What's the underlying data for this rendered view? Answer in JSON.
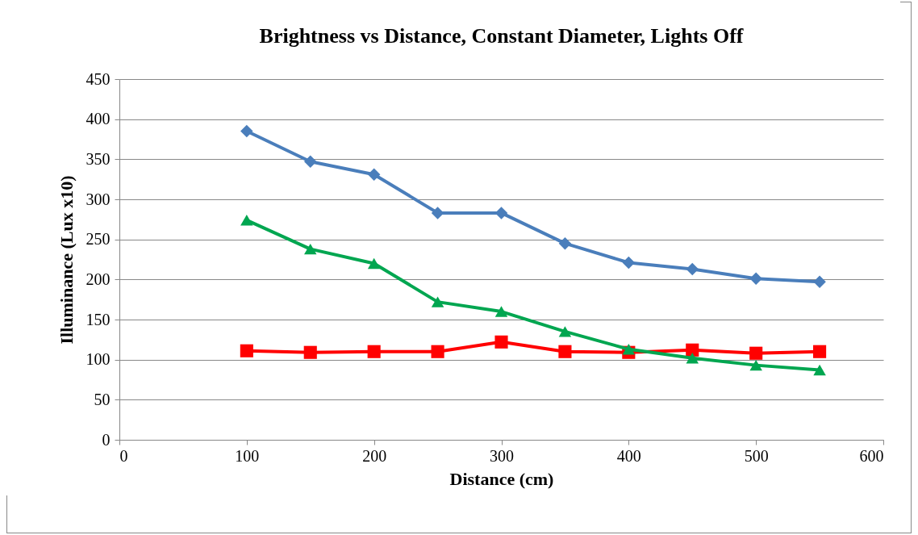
{
  "chart_data": {
    "type": "line",
    "title": "Brightness vs Distance, Constant Diameter, Lights Off",
    "xlabel": "Distance (cm)",
    "ylabel": "Illuminance (Lux x10)",
    "x": [
      100,
      150,
      200,
      250,
      300,
      350,
      400,
      450,
      500,
      550
    ],
    "series": [
      {
        "color": "#4a7ebb",
        "marker": "diamond",
        "values": [
          385,
          347,
          331,
          283,
          283,
          245,
          221,
          213,
          201,
          197
        ]
      },
      {
        "color": "#ff0000",
        "marker": "square",
        "values": [
          111,
          109,
          110,
          110,
          122,
          110,
          109,
          112,
          108,
          110
        ]
      },
      {
        "color": "#00a650",
        "marker": "triangle",
        "values": [
          274,
          238,
          220,
          172,
          160,
          135,
          113,
          102,
          93,
          87
        ]
      }
    ],
    "xlim": [
      0,
      600
    ],
    "xticks": [
      0,
      100,
      200,
      300,
      400,
      500,
      600
    ],
    "ylim": [
      0,
      450
    ],
    "yticks": [
      0,
      50,
      100,
      150,
      200,
      250,
      300,
      350,
      400,
      450
    ],
    "grid": "y",
    "line_style": "solid"
  }
}
